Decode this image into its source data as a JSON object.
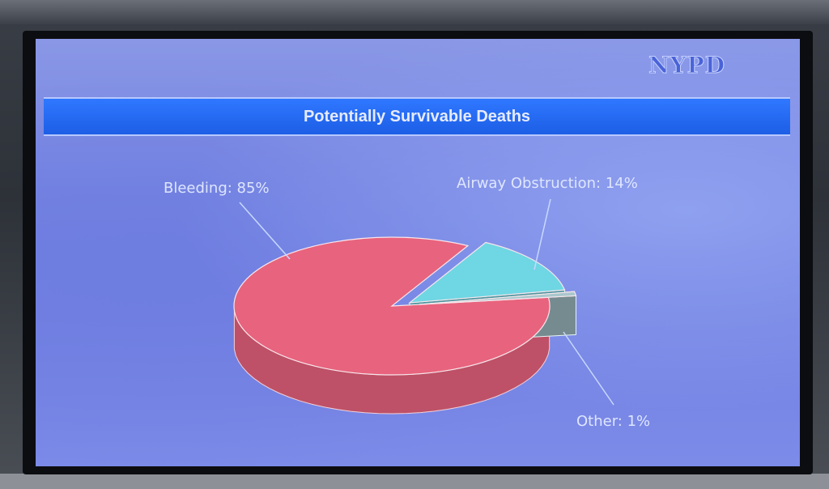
{
  "logo": "NYPD",
  "chart_data": {
    "type": "pie",
    "title": "Potentially Survivable Deaths",
    "slices": [
      {
        "label": "Bleeding: 85%",
        "name": "Bleeding",
        "value": 85,
        "color": "#e8637d"
      },
      {
        "label": "Airway Obstruction: 14%",
        "name": "Airway Obstruction",
        "value": 14,
        "color": "#6fd6e3"
      },
      {
        "label": "Other: 1%",
        "name": "Other",
        "value": 1,
        "color": "#a9c7cc"
      }
    ],
    "style": "3d-exploded"
  }
}
